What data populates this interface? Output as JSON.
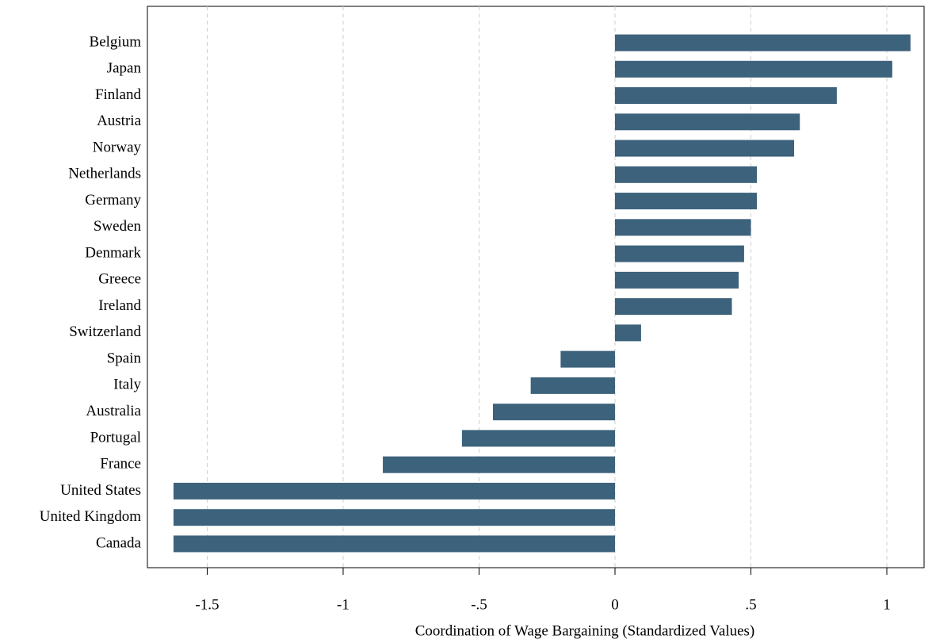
{
  "chart_data": {
    "type": "bar",
    "orientation": "horizontal",
    "x_label": "Coordination of Wage Bargaining (Standardized Values)",
    "categories": [
      "Belgium",
      "Japan",
      "Finland",
      "Austria",
      "Norway",
      "Netherlands",
      "Germany",
      "Sweden",
      "Denmark",
      "Greece",
      "Ireland",
      "Switzerland",
      "Spain",
      "Italy",
      "Australia",
      "Portugal",
      "France",
      "United States",
      "United Kingdom",
      "Canada"
    ],
    "values": [
      1.087,
      1.02,
      0.816,
      0.68,
      0.659,
      0.522,
      0.522,
      0.5,
      0.475,
      0.455,
      0.43,
      0.096,
      -0.2,
      -0.31,
      -0.449,
      -0.563,
      -0.854,
      -1.624,
      -1.624,
      -1.624
    ],
    "color": "#3d627c",
    "xlim": [
      -1.72,
      1.137
    ],
    "xticks": [
      -1.5,
      -1,
      {
        "value": -0.5,
        "label": "-.5"
      },
      0,
      {
        "value": 0.5,
        "label": ".5"
      },
      1
    ],
    "grid": true
  }
}
